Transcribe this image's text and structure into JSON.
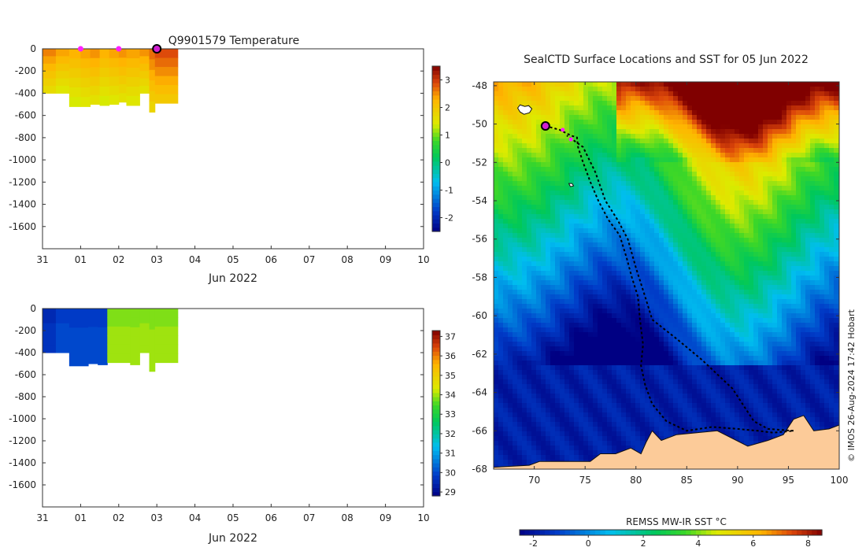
{
  "credit": "© IMOS 26-Aug-2024 17:42 Hobart",
  "chart_data": [
    {
      "type": "heatmap",
      "title": "Q9901579  Temperature",
      "xlabel": "Jun 2022",
      "x_tick_labels": [
        "31",
        "01",
        "02",
        "03",
        "04",
        "05",
        "06",
        "07",
        "08",
        "09",
        "10"
      ],
      "y_ticks": [
        0,
        -200,
        -400,
        -600,
        -800,
        -1000,
        -1200,
        -1400,
        -1600
      ],
      "ylim": [
        -1800,
        0
      ],
      "xlim": [
        0,
        10
      ],
      "colorbar": {
        "range": [
          -2.5,
          3.5
        ],
        "ticks": [
          -2,
          -1,
          0,
          1,
          2,
          3
        ]
      },
      "columns": [
        {
          "x0": 0.0,
          "x1": 0.35,
          "bottom": -400,
          "value": 2.1
        },
        {
          "x0": 0.35,
          "x1": 0.7,
          "bottom": -400,
          "value": 1.9
        },
        {
          "x0": 0.7,
          "x1": 1.0,
          "bottom": -520,
          "value": 1.8
        },
        {
          "x0": 1.0,
          "x1": 1.25,
          "bottom": -520,
          "value": 1.9
        },
        {
          "x0": 1.25,
          "x1": 1.5,
          "bottom": -500,
          "value": 2.0
        },
        {
          "x0": 1.5,
          "x1": 1.75,
          "bottom": -510,
          "value": 1.8
        },
        {
          "x0": 1.75,
          "x1": 2.0,
          "bottom": -500,
          "value": 1.9
        },
        {
          "x0": 2.0,
          "x1": 2.2,
          "bottom": -480,
          "value": 2.0
        },
        {
          "x0": 2.2,
          "x1": 2.55,
          "bottom": -510,
          "value": 1.9
        },
        {
          "x0": 2.55,
          "x1": 2.8,
          "bottom": -400,
          "value": 2.0
        },
        {
          "x0": 2.8,
          "x1": 2.95,
          "bottom": -570,
          "value": 2.2
        },
        {
          "x0": 2.95,
          "x1": 3.55,
          "bottom": -490,
          "value": 2.4
        }
      ],
      "markers": [
        {
          "x": 1.0,
          "y": 0,
          "kind": "magenta"
        },
        {
          "x": 2.0,
          "y": 0,
          "kind": "magenta"
        },
        {
          "x": 3.0,
          "y": 0,
          "kind": "current"
        }
      ]
    },
    {
      "type": "heatmap",
      "title": "",
      "xlabel": "Jun 2022",
      "x_tick_labels": [
        "31",
        "01",
        "02",
        "03",
        "04",
        "05",
        "06",
        "07",
        "08",
        "09",
        "10"
      ],
      "y_ticks": [
        0,
        -200,
        -400,
        -600,
        -800,
        -1000,
        -1200,
        -1400,
        -1600
      ],
      "ylim": [
        -1800,
        0
      ],
      "xlim": [
        0,
        10
      ],
      "colorbar": {
        "range": [
          28.8,
          37.3
        ],
        "ticks": [
          29,
          30,
          31,
          32,
          33,
          34,
          35,
          36,
          37
        ]
      },
      "columns": [
        {
          "x0": 0.0,
          "x1": 0.35,
          "bottom": -400,
          "value": 29.7
        },
        {
          "x0": 0.35,
          "x1": 0.7,
          "bottom": -400,
          "value": 30.0
        },
        {
          "x0": 0.7,
          "x1": 1.2,
          "bottom": -520,
          "value": 30.0
        },
        {
          "x0": 1.2,
          "x1": 1.45,
          "bottom": -500,
          "value": 30.0
        },
        {
          "x0": 1.45,
          "x1": 1.7,
          "bottom": -510,
          "value": 30.0
        },
        {
          "x0": 1.7,
          "x1": 2.3,
          "bottom": -490,
          "value": 34.0
        },
        {
          "x0": 2.3,
          "x1": 2.55,
          "bottom": -510,
          "value": 34.0
        },
        {
          "x0": 2.55,
          "x1": 2.8,
          "bottom": -400,
          "value": 34.0
        },
        {
          "x0": 2.8,
          "x1": 2.95,
          "bottom": -570,
          "value": 34.0
        },
        {
          "x0": 2.95,
          "x1": 3.55,
          "bottom": -490,
          "value": 34.0
        }
      ]
    },
    {
      "type": "heatmap",
      "title": "SealCTD Surface Locations and SST for 05 Jun 2022",
      "x_ticks": [
        70,
        75,
        80,
        85,
        90,
        95,
        100
      ],
      "y_ticks": [
        -48,
        -50,
        -52,
        -54,
        -56,
        -58,
        -60,
        -62,
        -64,
        -66,
        -68
      ],
      "xlim": [
        66,
        100
      ],
      "ylim": [
        -68,
        -47.8
      ],
      "colorbar": {
        "label": "REMSS MW-IR SST °C",
        "range": [
          -2.5,
          8.5
        ],
        "ticks": [
          -2,
          0,
          2,
          4,
          6,
          8
        ]
      },
      "land_color": "#fccb99",
      "track": [
        [
          71.1,
          -50.1
        ],
        [
          72.5,
          -50.3
        ],
        [
          73.6,
          -50.6
        ],
        [
          74.2,
          -50.7
        ],
        [
          74.3,
          -51.2
        ],
        [
          74.8,
          -52.0
        ],
        [
          75.5,
          -53.0
        ],
        [
          76.3,
          -54.0
        ],
        [
          77.3,
          -55.0
        ],
        [
          78.4,
          -55.8
        ],
        [
          79.1,
          -57.0
        ],
        [
          79.6,
          -58.0
        ],
        [
          80.2,
          -59.0
        ],
        [
          80.4,
          -60.2
        ],
        [
          80.7,
          -61.5
        ],
        [
          80.5,
          -62.6
        ],
        [
          80.9,
          -63.6
        ],
        [
          81.6,
          -64.6
        ],
        [
          83.0,
          -65.5
        ],
        [
          85.0,
          -66.0
        ],
        [
          87.5,
          -65.8
        ],
        [
          90.0,
          -65.9
        ],
        [
          92.0,
          -66.0
        ],
        [
          93.5,
          -66.1
        ],
        [
          95.5,
          -66.0
        ]
      ],
      "track_return": [
        [
          95.5,
          -66.0
        ],
        [
          93.0,
          -65.9
        ],
        [
          91.6,
          -65.5
        ],
        [
          89.5,
          -63.8
        ],
        [
          86.5,
          -62.3
        ],
        [
          84.0,
          -61.2
        ],
        [
          81.6,
          -60.2
        ],
        [
          80.9,
          -59.0
        ],
        [
          80.0,
          -57.5
        ],
        [
          79.2,
          -56.0
        ],
        [
          78.2,
          -55.0
        ],
        [
          77.0,
          -54.0
        ],
        [
          76.0,
          -52.5
        ],
        [
          74.8,
          -51.2
        ],
        [
          73.2,
          -50.6
        ]
      ],
      "markers": [
        {
          "x": 72.8,
          "y": -50.3,
          "kind": "magenta"
        },
        {
          "x": 73.6,
          "y": -50.8,
          "kind": "magenta"
        },
        {
          "x": 71.1,
          "y": -50.1,
          "kind": "current"
        }
      ]
    }
  ]
}
